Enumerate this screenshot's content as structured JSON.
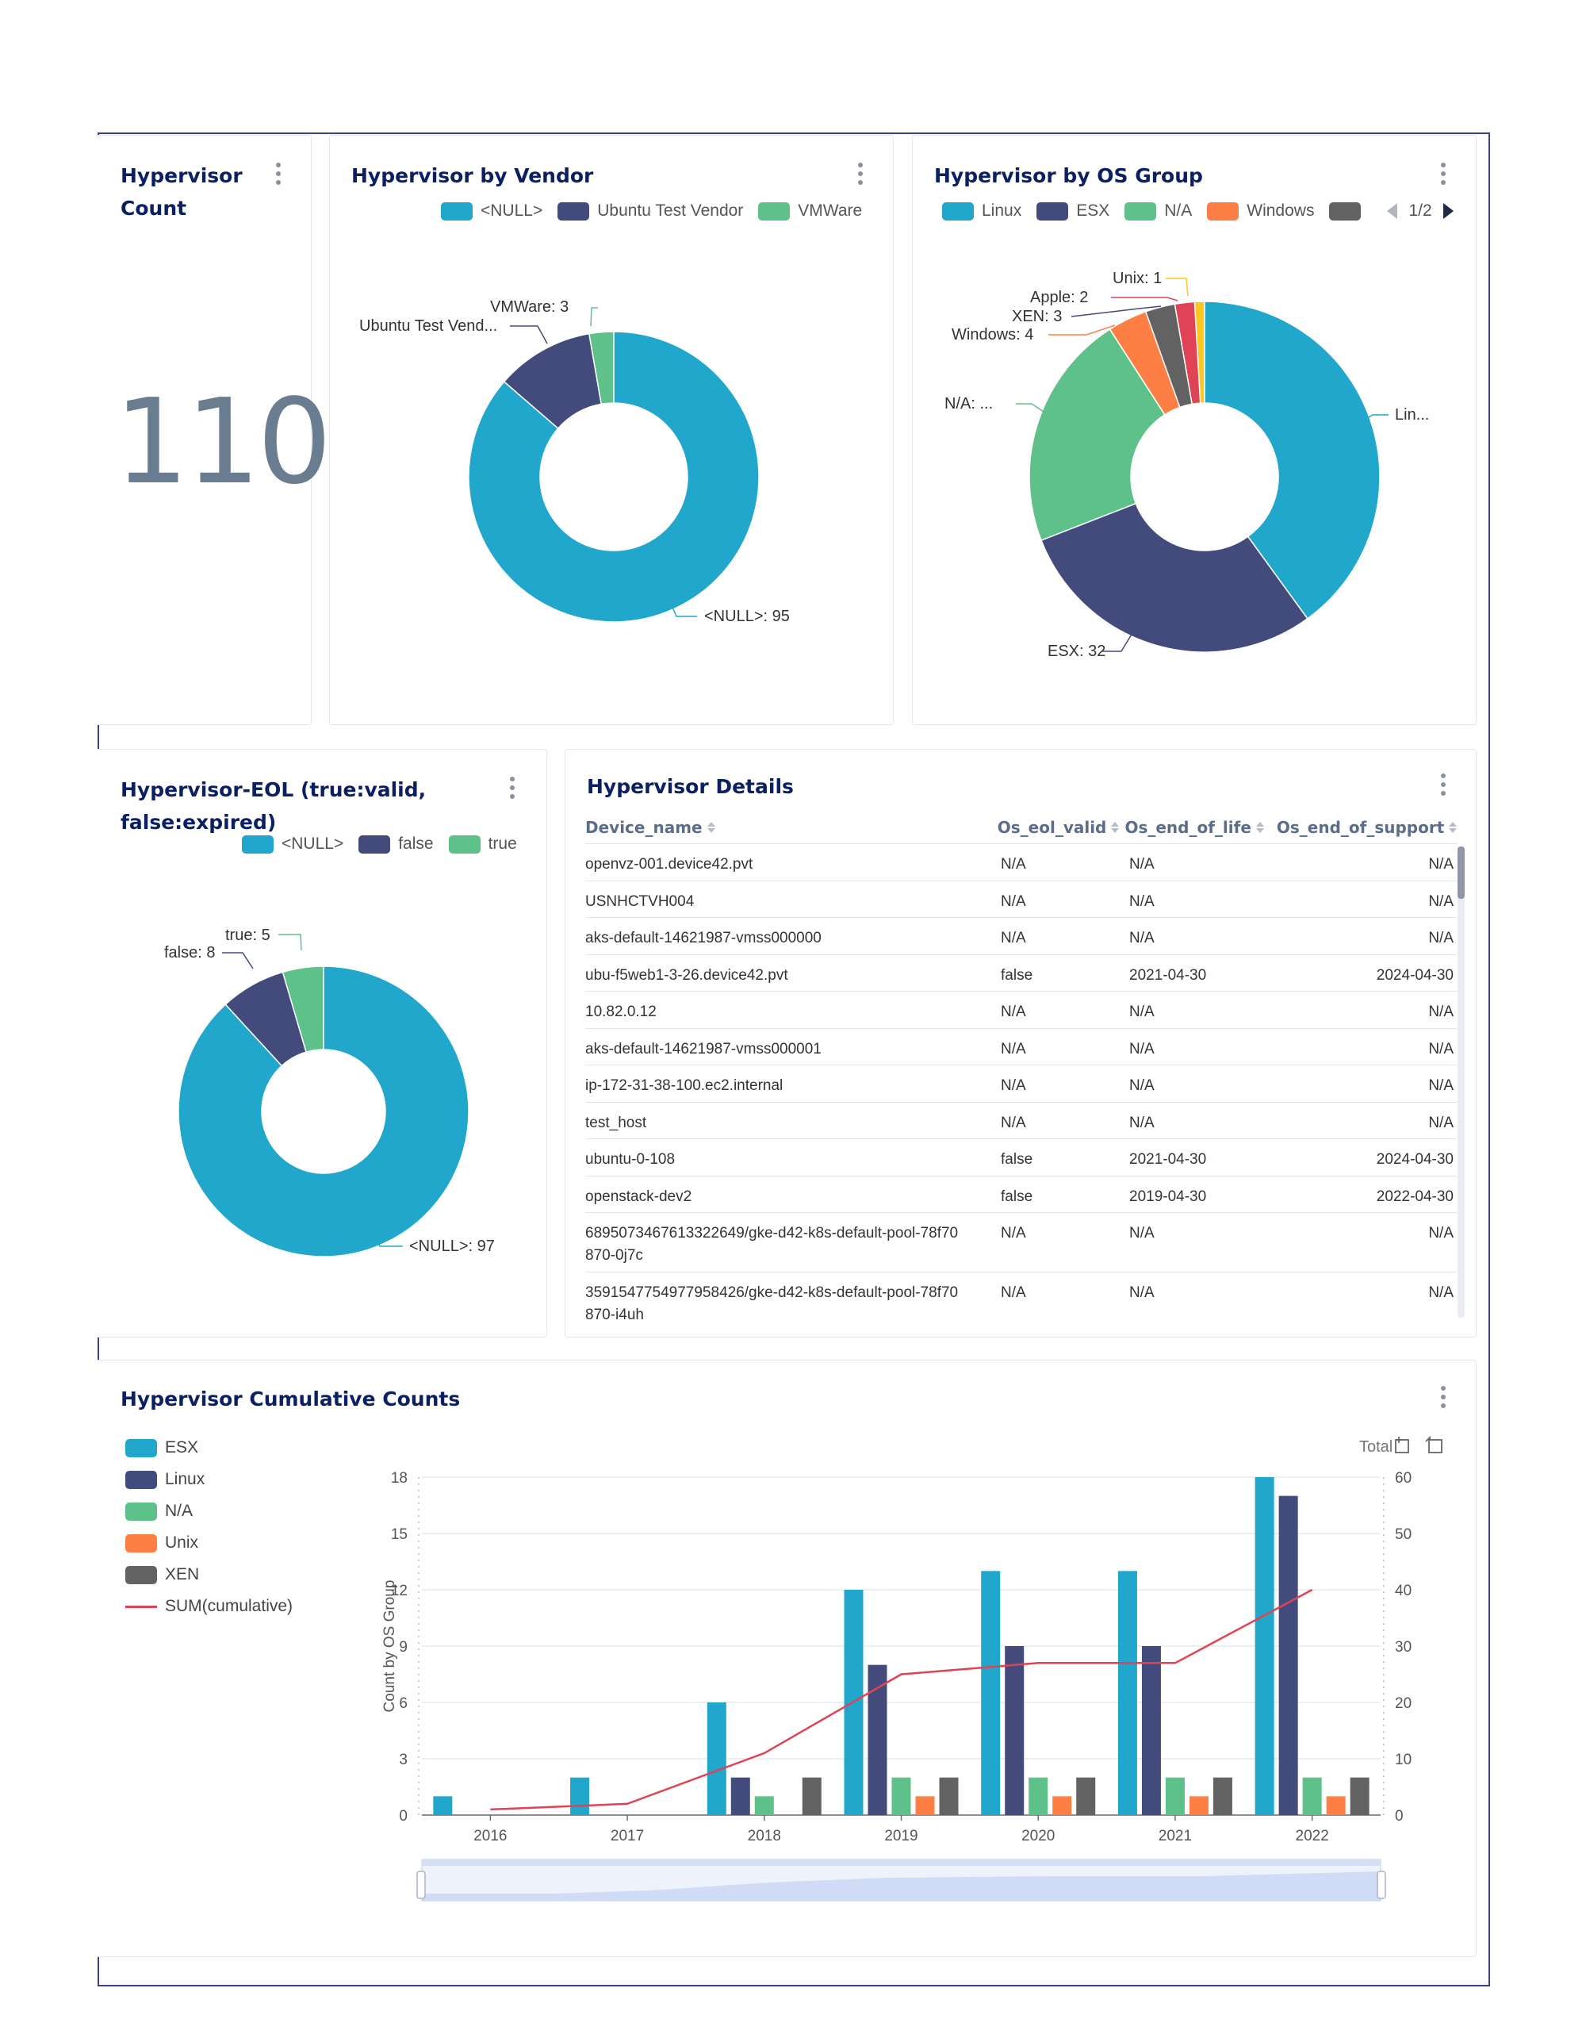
{
  "colors": {
    "teal": "#21a7cb",
    "navy": "#434b7c",
    "green": "#5ec18a",
    "orange": "#fd7f45",
    "gray": "#626262",
    "red": "#e04356",
    "yellow": "#fcc71e",
    "title": "#0b1f63"
  },
  "panels": {
    "count": {
      "title_line1": "Hypervisor",
      "title_line2": "Count",
      "value": "110"
    },
    "vendor": {
      "title": "Hypervisor by Vendor",
      "legend": [
        "<NULL>",
        "Ubuntu Test Vendor",
        "VMWare"
      ],
      "labels": {
        "vmware": "VMWare: 3",
        "ubuntu": "Ubuntu Test Vend...",
        "null": "<NULL>: 95"
      }
    },
    "os_group": {
      "title": "Hypervisor by OS Group",
      "legend": [
        "Linux",
        "ESX",
        "N/A",
        "Windows"
      ],
      "pager": "1/2",
      "labels": {
        "unix": "Unix: 1",
        "apple": "Apple: 2",
        "xen": "XEN: 3",
        "windows": "Windows: 4",
        "na": "N/A: ...",
        "linux": "Lin...",
        "esx": "ESX: 32"
      }
    },
    "eol": {
      "title_line1": "Hypervisor-EOL (true:valid,",
      "title_line2": "false:expired)",
      "legend": [
        "<NULL>",
        "false",
        "true"
      ],
      "labels": {
        "true": "true: 5",
        "false": "false: 8",
        "null": "<NULL>: 97"
      }
    },
    "details": {
      "title": "Hypervisor Details",
      "columns": [
        "Device_name",
        "Os_eol_valid",
        "Os_end_of_life",
        "Os_end_of_support"
      ],
      "rows": [
        [
          "openvz-001.device42.pvt",
          "N/A",
          "N/A",
          "N/A"
        ],
        [
          "USNHCTVH004",
          "N/A",
          "N/A",
          "N/A"
        ],
        [
          "aks-default-14621987-vmss000000",
          "N/A",
          "N/A",
          "N/A"
        ],
        [
          "ubu-f5web1-3-26.device42.pvt",
          "false",
          "2021-04-30",
          "2024-04-30"
        ],
        [
          "10.82.0.12",
          "N/A",
          "N/A",
          "N/A"
        ],
        [
          "aks-default-14621987-vmss000001",
          "N/A",
          "N/A",
          "N/A"
        ],
        [
          "ip-172-31-38-100.ec2.internal",
          "N/A",
          "N/A",
          "N/A"
        ],
        [
          "test_host",
          "N/A",
          "N/A",
          "N/A"
        ],
        [
          "ubuntu-0-108",
          "false",
          "2021-04-30",
          "2024-04-30"
        ],
        [
          "openstack-dev2",
          "false",
          "2019-04-30",
          "2022-04-30"
        ],
        [
          "6895073467613322649/gke-d42-k8s-default-pool-78f70870-0j7c",
          "N/A",
          "N/A",
          "N/A"
        ],
        [
          "3591547754977958426/gke-d42-k8s-default-pool-78f70870-i4uh",
          "N/A",
          "N/A",
          "N/A"
        ]
      ]
    },
    "cumulative": {
      "title": "Hypervisor Cumulative Counts",
      "legend": [
        "ESX",
        "Linux",
        "N/A",
        "Unix",
        "XEN",
        "SUM(cumulative)"
      ],
      "total_label": "Total"
    }
  },
  "chart_data": [
    {
      "type": "pie",
      "title": "Hypervisor by Vendor",
      "categories": [
        "<NULL>",
        "Ubuntu Test Vendor",
        "VMWare"
      ],
      "values": [
        95,
        12,
        3
      ]
    },
    {
      "type": "pie",
      "title": "Hypervisor by OS Group",
      "categories": [
        "Linux",
        "ESX",
        "N/A",
        "Windows",
        "XEN",
        "Apple",
        "Unix"
      ],
      "values": [
        44,
        32,
        24,
        4,
        3,
        2,
        1
      ]
    },
    {
      "type": "pie",
      "title": "Hypervisor-EOL (true:valid, false:expired)",
      "categories": [
        "<NULL>",
        "false",
        "true"
      ],
      "values": [
        97,
        8,
        5
      ]
    },
    {
      "type": "bar",
      "title": "Hypervisor Cumulative Counts",
      "categories": [
        "2016",
        "2017",
        "2018",
        "2019",
        "2020",
        "2021",
        "2022"
      ],
      "ylabel": "Count by OS Group",
      "ylim": [
        0,
        18
      ],
      "y2lim": [
        0,
        60
      ],
      "yticks": [
        0,
        3,
        6,
        9,
        12,
        15,
        18
      ],
      "y2ticks": [
        0,
        10,
        20,
        30,
        40,
        50,
        60
      ],
      "series": [
        {
          "name": "ESX",
          "values": [
            1,
            2,
            6,
            12,
            13,
            13,
            18
          ]
        },
        {
          "name": "Linux",
          "values": [
            0,
            0,
            2,
            8,
            9,
            9,
            17
          ]
        },
        {
          "name": "N/A",
          "values": [
            0,
            0,
            1,
            2,
            2,
            2,
            2
          ]
        },
        {
          "name": "Unix",
          "values": [
            0,
            0,
            0,
            1,
            1,
            1,
            1
          ]
        },
        {
          "name": "XEN",
          "values": [
            0,
            0,
            2,
            2,
            2,
            2,
            2
          ]
        }
      ],
      "line": {
        "name": "SUM(cumulative)",
        "axis": "right",
        "values": [
          1,
          2,
          11,
          25,
          27,
          27,
          40
        ]
      }
    }
  ]
}
